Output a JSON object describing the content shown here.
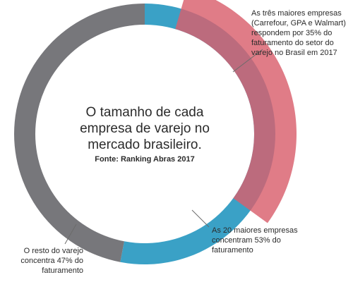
{
  "chart_data": {
    "type": "pie",
    "title": "O tamanho de cada empresa de varejo no mercado brasileiro.",
    "source": "Fonte: Ranking Abras 2017",
    "series": [
      {
        "label": "As 20 maiores empresas concentram 53% do faturamento",
        "value": 53,
        "color": "#3aa1c6"
      },
      {
        "label": "O resto do varejo concentra 47% do faturamento",
        "value": 47,
        "color": "#77777b"
      }
    ],
    "highlight": {
      "label": "As três maiores empresas (Carrefour, GPA e Walmart) respondem por 35% do faturamento do setor do varejo no Brasil em 2017",
      "value": 35,
      "color": "#d95f6d"
    }
  }
}
